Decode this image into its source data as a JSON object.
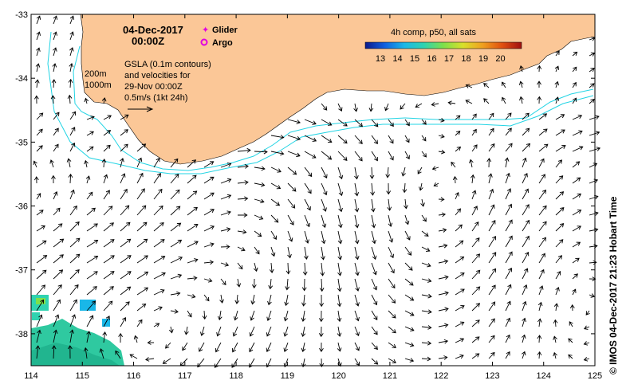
{
  "header": {
    "date": "04-Dec-2017",
    "time": "00:00Z"
  },
  "legend": {
    "glider": "Glider",
    "argo": "Argo",
    "glider_color": "#e000e0",
    "argo_color": "#e000e0"
  },
  "notes": {
    "gsla_line1": "GSLA (0.1m contours)",
    "gsla_line2": "and velocities for",
    "gsla_line3": "29-Nov 00:00Z",
    "scale": "0.5m/s (1kt 24h)",
    "depth_200": "200m",
    "depth_1000": "1000m"
  },
  "colorbar": {
    "title": "4h comp, p50, all sats",
    "labels": [
      "13",
      "14",
      "15",
      "16",
      "17",
      "18",
      "19",
      "20"
    ],
    "colors": [
      "#0a1a8c",
      "#1060e0",
      "#19b7e8",
      "#2fd3b0",
      "#7ee04a",
      "#d8e02a",
      "#f0a020",
      "#e05010",
      "#a01010"
    ]
  },
  "credit": "© IMOS 04-Dec-2017 21:23 Hobart Time",
  "axes": {
    "x_ticks": [
      "114",
      "115",
      "116",
      "117",
      "118",
      "119",
      "120",
      "121",
      "122",
      "123",
      "124",
      "125"
    ],
    "y_ticks": [
      "-33",
      "-34",
      "-35",
      "-36",
      "-37",
      "-38"
    ],
    "lon_range": [
      114,
      125
    ],
    "lat_range": [
      -38.5,
      -33
    ]
  },
  "colors": {
    "land": "#fbc797",
    "isobath": "#22d4e4",
    "sst_main": "#2fc9a0"
  }
}
